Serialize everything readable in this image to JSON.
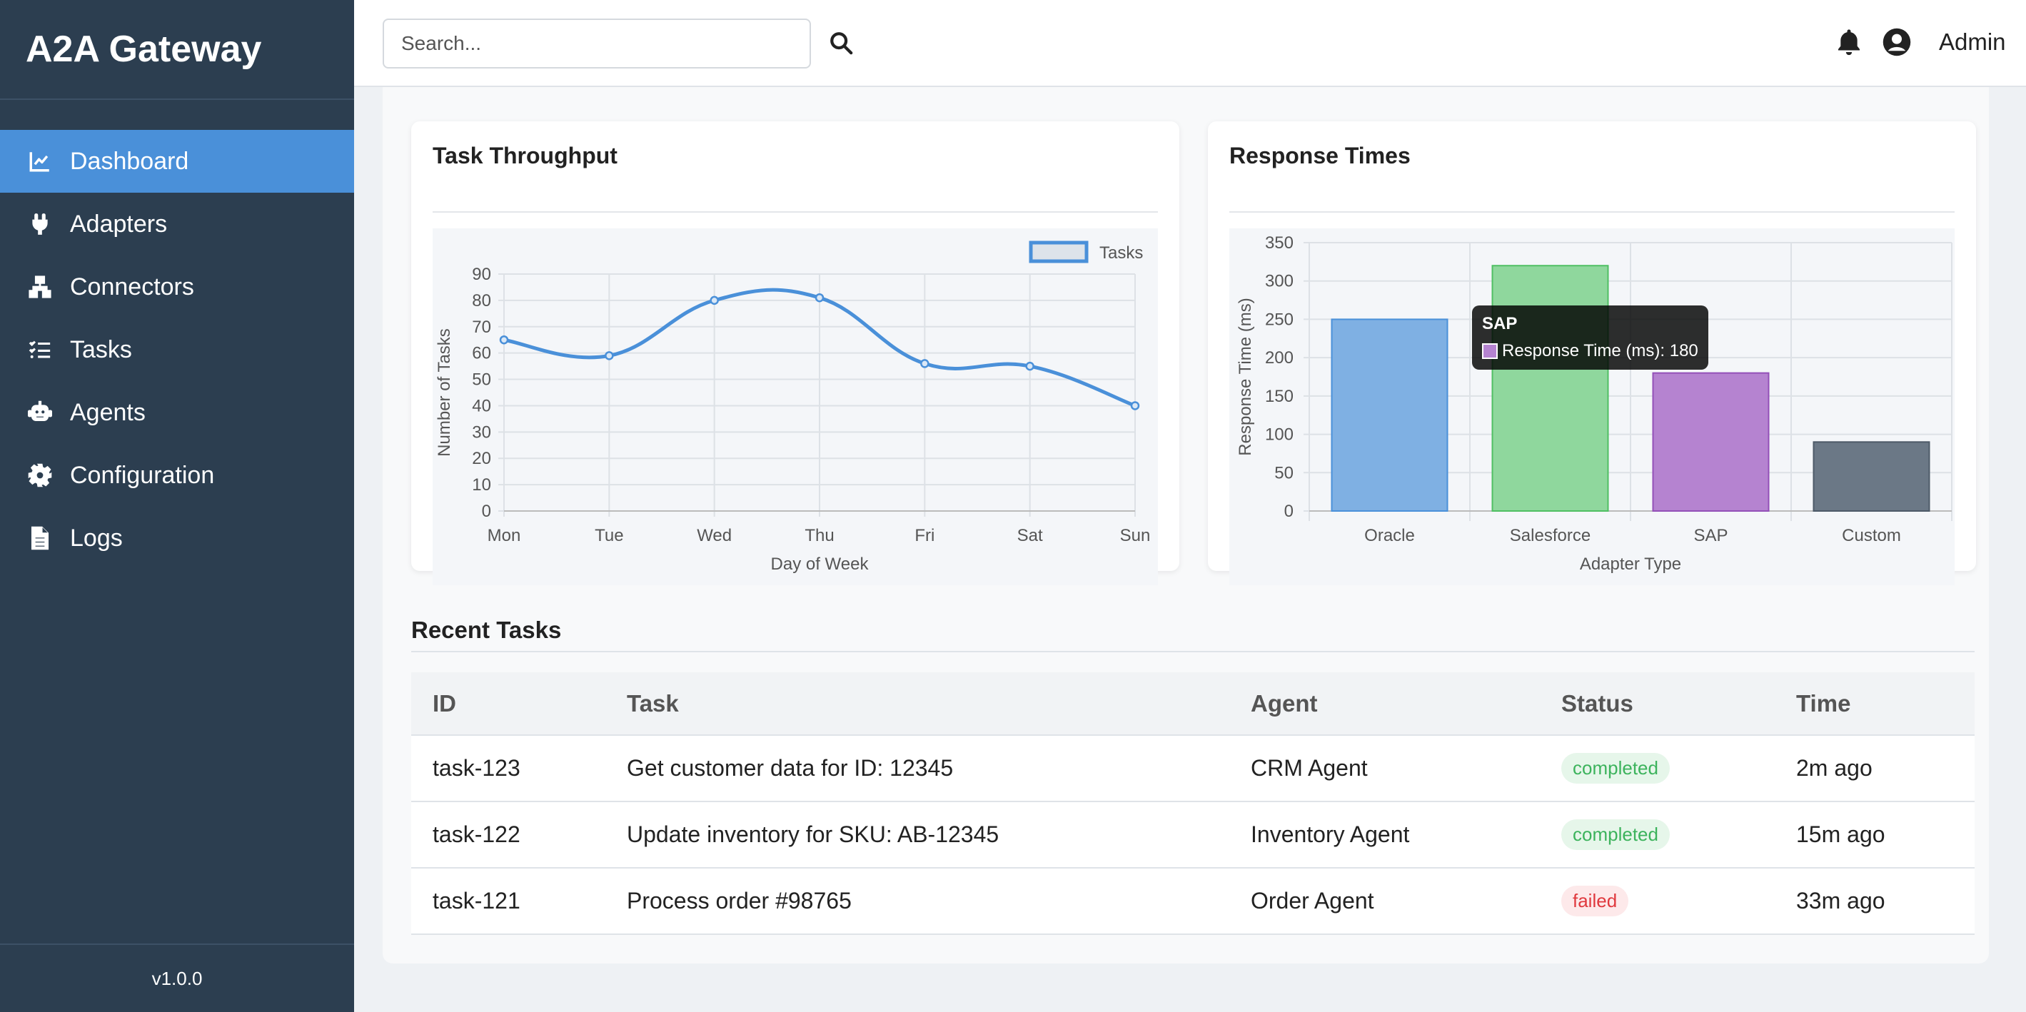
{
  "app": {
    "brand": "A2A Gateway",
    "version": "v1.0.0"
  },
  "sidebar": {
    "items": [
      {
        "label": "Dashboard",
        "icon": "line-chart-icon",
        "active": true
      },
      {
        "label": "Adapters",
        "icon": "plug-icon",
        "active": false
      },
      {
        "label": "Connectors",
        "icon": "network-icon",
        "active": false
      },
      {
        "label": "Tasks",
        "icon": "tasks-list-icon",
        "active": false
      },
      {
        "label": "Agents",
        "icon": "robot-icon",
        "active": false
      },
      {
        "label": "Configuration",
        "icon": "gear-icon",
        "active": false
      },
      {
        "label": "Logs",
        "icon": "file-icon",
        "active": false
      }
    ]
  },
  "header": {
    "search_placeholder": "Search...",
    "user_name": "Admin",
    "icons": [
      "search-icon",
      "bell-icon",
      "user-circle-icon"
    ]
  },
  "colors": {
    "sidebar_bg": "#2c3e50",
    "active_item": "#4a90d9",
    "oracle": "#7fb0e3",
    "salesforce": "#8fd79d",
    "sap": "#b583d0",
    "custom": "#6b7886"
  },
  "chart_data": [
    {
      "type": "line",
      "title": "Task Throughput",
      "categories": [
        "Mon",
        "Tue",
        "Wed",
        "Thu",
        "Fri",
        "Sat",
        "Sun"
      ],
      "series": [
        {
          "name": "Tasks",
          "values": [
            65,
            59,
            80,
            81,
            56,
            55,
            40
          ]
        }
      ],
      "xlabel": "Day of Week",
      "ylabel": "Number of Tasks",
      "ylim": [
        0,
        90
      ],
      "yticks": [
        0,
        10,
        20,
        30,
        40,
        50,
        60,
        70,
        80,
        90
      ],
      "legend": "top-right",
      "grid": true
    },
    {
      "type": "bar",
      "title": "Response Times",
      "categories": [
        "Oracle",
        "Salesforce",
        "SAP",
        "Custom"
      ],
      "values": [
        250,
        320,
        180,
        90
      ],
      "xlabel": "Adapter Type",
      "ylabel": "Response Time (ms)",
      "ylim": [
        0,
        350
      ],
      "yticks": [
        0,
        50,
        100,
        150,
        200,
        250,
        300,
        350
      ],
      "grid": true,
      "tooltip": {
        "title": "SAP",
        "label": "Response Time (ms): 180"
      }
    }
  ],
  "recent_tasks": {
    "title": "Recent Tasks",
    "columns": [
      "ID",
      "Task",
      "Agent",
      "Status",
      "Time"
    ],
    "rows": [
      {
        "id": "task-123",
        "task": "Get customer data for ID: 12345",
        "agent": "CRM Agent",
        "status": "completed",
        "time": "2m ago"
      },
      {
        "id": "task-122",
        "task": "Update inventory for SKU: AB-12345",
        "agent": "Inventory Agent",
        "status": "completed",
        "time": "15m ago"
      },
      {
        "id": "task-121",
        "task": "Process order #98765",
        "agent": "Order Agent",
        "status": "failed",
        "time": "33m ago"
      }
    ]
  }
}
